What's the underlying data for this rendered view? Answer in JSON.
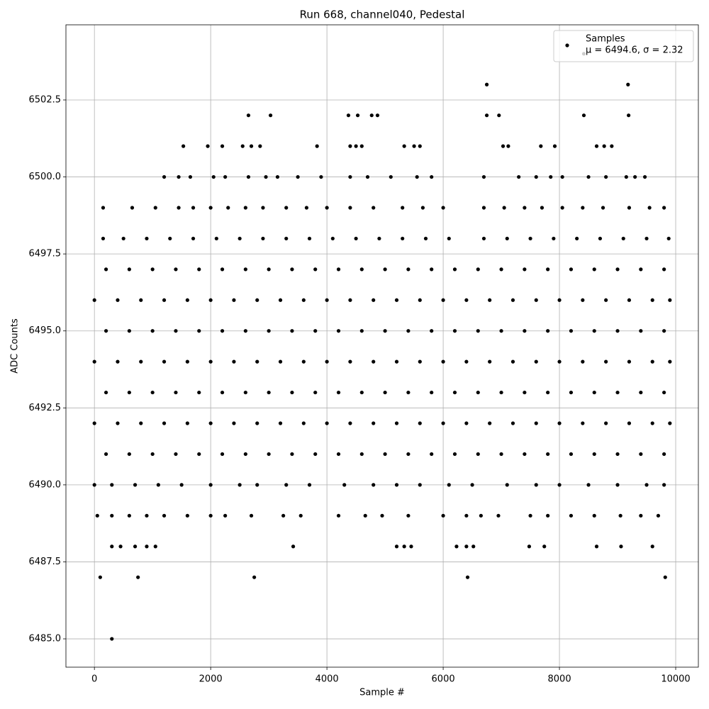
{
  "chart_data": {
    "type": "scatter",
    "title": "Run 668, channel040, Pedestal",
    "x_label": "Sample #",
    "y_label": "ADC Counts",
    "legend_note": "μ = 6494.6, σ = 2.32",
    "legend": "upper right",
    "grid": true,
    "xlim": [
      -490,
      10390
    ],
    "ylim": [
      6484.08,
      6504.94
    ],
    "xticks": [
      0,
      2000,
      4000,
      6000,
      8000,
      10000
    ],
    "yticks": [
      {
        "value": 6485,
        "label": "6485.0"
      },
      {
        "value": 6487.5,
        "label": "6487.5"
      },
      {
        "value": 6490,
        "label": "6490.0"
      },
      {
        "value": 6492.5,
        "label": "6492.5"
      },
      {
        "value": 6495,
        "label": "6495.0"
      },
      {
        "value": 6497.5,
        "label": "6497.5"
      },
      {
        "value": 6500,
        "label": "6500.0"
      },
      {
        "value": 6502.5,
        "label": "6502.5"
      }
    ],
    "x": [
      300,
      100,
      750,
      2750,
      6420,
      9820,
      300,
      450,
      700,
      900,
      1050,
      3420,
      5200,
      5330,
      5450,
      6230,
      6400,
      6520,
      7480,
      7740,
      8640,
      9060,
      9600,
      50,
      300,
      600,
      900,
      1200,
      1600,
      2000,
      2250,
      2700,
      3250,
      3550,
      4200,
      4660,
      4950,
      5400,
      6000,
      6400,
      6650,
      6950,
      7500,
      7800,
      8200,
      8600,
      9050,
      9400,
      9700,
      0,
      300,
      700,
      1100,
      1500,
      2000,
      2500,
      2800,
      3300,
      3700,
      4300,
      4800,
      5200,
      5600,
      6100,
      6500,
      7100,
      7600,
      8000,
      8500,
      9000,
      9500,
      9800,
      200,
      600,
      1000,
      1400,
      1800,
      2200,
      2600,
      3000,
      3400,
      3800,
      4200,
      4600,
      5000,
      5400,
      5800,
      6200,
      6600,
      7000,
      7400,
      7800,
      8200,
      8600,
      9000,
      9400,
      9800,
      0,
      400,
      800,
      1200,
      1600,
      2000,
      2400,
      2800,
      3200,
      3600,
      4000,
      4400,
      4800,
      5200,
      5600,
      6000,
      6400,
      6800,
      7200,
      7600,
      8000,
      8400,
      8800,
      9200,
      9600,
      9900,
      200,
      600,
      1000,
      1400,
      1800,
      2200,
      2600,
      3000,
      3400,
      3800,
      4200,
      4600,
      5000,
      5400,
      5800,
      6200,
      6600,
      7000,
      7400,
      7800,
      8200,
      8600,
      9000,
      9400,
      9800,
      0,
      400,
      800,
      1200,
      1600,
      2000,
      2400,
      2800,
      3200,
      3600,
      4000,
      4400,
      4800,
      5200,
      5600,
      6000,
      6400,
      6800,
      7200,
      7600,
      8000,
      8400,
      8800,
      9200,
      9600,
      9900,
      200,
      600,
      1000,
      1400,
      1800,
      2200,
      2600,
      3000,
      3400,
      3800,
      4200,
      4600,
      5000,
      5400,
      5800,
      6200,
      6600,
      7000,
      7400,
      7800,
      8200,
      8600,
      9000,
      9400,
      9800,
      0,
      400,
      800,
      1200,
      1600,
      2000,
      2400,
      2800,
      3200,
      3600,
      4000,
      4400,
      4800,
      5200,
      5600,
      6000,
      6400,
      6800,
      7200,
      7600,
      8000,
      8400,
      8800,
      9200,
      9600,
      9900,
      200,
      600,
      1000,
      1400,
      1800,
      2200,
      2600,
      3000,
      3400,
      3800,
      4200,
      4600,
      5000,
      5400,
      5800,
      6200,
      6600,
      7000,
      7400,
      7800,
      8200,
      8600,
      9000,
      9400,
      9800,
      150,
      500,
      900,
      1300,
      1700,
      2100,
      2500,
      2900,
      3300,
      3700,
      4100,
      4500,
      4900,
      5300,
      5700,
      6100,
      6700,
      7100,
      7500,
      7900,
      8300,
      8700,
      9100,
      9500,
      9880,
      150,
      650,
      1050,
      1450,
      1700,
      2000,
      2300,
      2600,
      2900,
      3300,
      3650,
      4000,
      4400,
      4800,
      5300,
      5650,
      6000,
      6700,
      7050,
      7400,
      7700,
      8050,
      8400,
      8750,
      9200,
      9550,
      9800,
      1200,
      1450,
      1650,
      2050,
      2250,
      2650,
      2950,
      3150,
      3500,
      3900,
      4400,
      4700,
      5100,
      5550,
      5800,
      6700,
      7300,
      7600,
      7850,
      8050,
      8500,
      8800,
      9150,
      9300,
      9470,
      1530,
      1950,
      2200,
      2550,
      2700,
      2850,
      3830,
      4400,
      4500,
      4600,
      5330,
      5500,
      5600,
      7030,
      7120,
      7680,
      7920,
      8640,
      8770,
      8900,
      2650,
      3030,
      4370,
      4530,
      4770,
      4870,
      6750,
      6960,
      8420,
      9190,
      6750,
      9180,
      8420
    ],
    "series": [
      {
        "name": "Samples",
        "color": "#000000",
        "values": [
          6485,
          6487,
          6487,
          6487,
          6487,
          6487,
          6488,
          6488,
          6488,
          6488,
          6488,
          6488,
          6488,
          6488,
          6488,
          6488,
          6488,
          6488,
          6488,
          6488,
          6488,
          6488,
          6488,
          6489,
          6489,
          6489,
          6489,
          6489,
          6489,
          6489,
          6489,
          6489,
          6489,
          6489,
          6489,
          6489,
          6489,
          6489,
          6489,
          6489,
          6489,
          6489,
          6489,
          6489,
          6489,
          6489,
          6489,
          6489,
          6489,
          6490,
          6490,
          6490,
          6490,
          6490,
          6490,
          6490,
          6490,
          6490,
          6490,
          6490,
          6490,
          6490,
          6490,
          6490,
          6490,
          6490,
          6490,
          6490,
          6490,
          6490,
          6490,
          6490,
          6491,
          6491,
          6491,
          6491,
          6491,
          6491,
          6491,
          6491,
          6491,
          6491,
          6491,
          6491,
          6491,
          6491,
          6491,
          6491,
          6491,
          6491,
          6491,
          6491,
          6491,
          6491,
          6491,
          6491,
          6491,
          6492,
          6492,
          6492,
          6492,
          6492,
          6492,
          6492,
          6492,
          6492,
          6492,
          6492,
          6492,
          6492,
          6492,
          6492,
          6492,
          6492,
          6492,
          6492,
          6492,
          6492,
          6492,
          6492,
          6492,
          6492,
          6492,
          6493,
          6493,
          6493,
          6493,
          6493,
          6493,
          6493,
          6493,
          6493,
          6493,
          6493,
          6493,
          6493,
          6493,
          6493,
          6493,
          6493,
          6493,
          6493,
          6493,
          6493,
          6493,
          6493,
          6493,
          6493,
          6494,
          6494,
          6494,
          6494,
          6494,
          6494,
          6494,
          6494,
          6494,
          6494,
          6494,
          6494,
          6494,
          6494,
          6494,
          6494,
          6494,
          6494,
          6494,
          6494,
          6494,
          6494,
          6494,
          6494,
          6494,
          6494,
          6495,
          6495,
          6495,
          6495,
          6495,
          6495,
          6495,
          6495,
          6495,
          6495,
          6495,
          6495,
          6495,
          6495,
          6495,
          6495,
          6495,
          6495,
          6495,
          6495,
          6495,
          6495,
          6495,
          6495,
          6495,
          6496,
          6496,
          6496,
          6496,
          6496,
          6496,
          6496,
          6496,
          6496,
          6496,
          6496,
          6496,
          6496,
          6496,
          6496,
          6496,
          6496,
          6496,
          6496,
          6496,
          6496,
          6496,
          6496,
          6496,
          6496,
          6496,
          6497,
          6497,
          6497,
          6497,
          6497,
          6497,
          6497,
          6497,
          6497,
          6497,
          6497,
          6497,
          6497,
          6497,
          6497,
          6497,
          6497,
          6497,
          6497,
          6497,
          6497,
          6497,
          6497,
          6497,
          6497,
          6498,
          6498,
          6498,
          6498,
          6498,
          6498,
          6498,
          6498,
          6498,
          6498,
          6498,
          6498,
          6498,
          6498,
          6498,
          6498,
          6498,
          6498,
          6498,
          6498,
          6498,
          6498,
          6498,
          6498,
          6498,
          6499,
          6499,
          6499,
          6499,
          6499,
          6499,
          6499,
          6499,
          6499,
          6499,
          6499,
          6499,
          6499,
          6499,
          6499,
          6499,
          6499,
          6499,
          6499,
          6499,
          6499,
          6499,
          6499,
          6499,
          6499,
          6499,
          6499,
          6500,
          6500,
          6500,
          6500,
          6500,
          6500,
          6500,
          6500,
          6500,
          6500,
          6500,
          6500,
          6500,
          6500,
          6500,
          6500,
          6500,
          6500,
          6500,
          6500,
          6500,
          6500,
          6500,
          6500,
          6500,
          6501,
          6501,
          6501,
          6501,
          6501,
          6501,
          6501,
          6501,
          6501,
          6501,
          6501,
          6501,
          6501,
          6501,
          6501,
          6501,
          6501,
          6501,
          6501,
          6501,
          6502,
          6502,
          6502,
          6502,
          6502,
          6502,
          6502,
          6502,
          6502,
          6502,
          6503,
          6503,
          6504
        ]
      }
    ]
  }
}
